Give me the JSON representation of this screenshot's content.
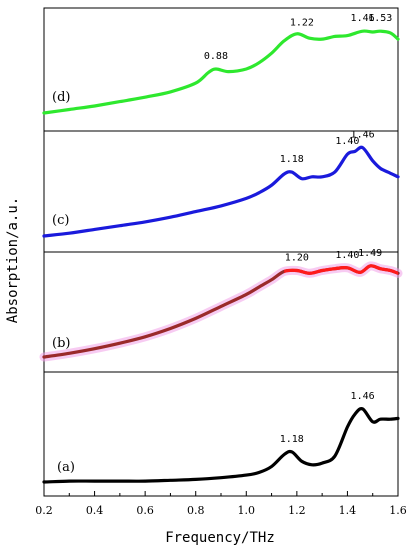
{
  "chart_data": {
    "type": "line",
    "title": "",
    "xlabel": "Frequency/THz",
    "ylabel": "Absorption/a.u.",
    "xlim": [
      0.2,
      1.6
    ],
    "x_ticks": [
      "0.2",
      "0.4",
      "0.6",
      "0.8",
      "1.0",
      "1.2",
      "1.4",
      "1.6"
    ],
    "grid": false,
    "panels": [
      {
        "label": "(d)",
        "color": "#2ee82e",
        "x": [
          0.2,
          0.3,
          0.4,
          0.5,
          0.6,
          0.7,
          0.8,
          0.85,
          0.88,
          0.93,
          1.0,
          1.05,
          1.1,
          1.15,
          1.2,
          1.25,
          1.3,
          1.35,
          1.4,
          1.46,
          1.5,
          1.53,
          1.57,
          1.6
        ],
        "y": [
          0.0,
          0.04,
          0.08,
          0.13,
          0.18,
          0.24,
          0.34,
          0.46,
          0.5,
          0.47,
          0.5,
          0.57,
          0.68,
          0.82,
          0.9,
          0.85,
          0.84,
          0.87,
          0.88,
          0.93,
          0.92,
          0.93,
          0.91,
          0.84
        ],
        "peaks": [
          {
            "x": 0.88,
            "text": "0.88"
          },
          {
            "x": 1.22,
            "text": "1.22"
          },
          {
            "x": 1.46,
            "text": "1.46"
          },
          {
            "x": 1.53,
            "text": "1.53"
          }
        ]
      },
      {
        "label": "(c)",
        "color": "#1a1adc",
        "x": [
          0.2,
          0.3,
          0.4,
          0.5,
          0.6,
          0.7,
          0.8,
          0.9,
          1.0,
          1.05,
          1.1,
          1.15,
          1.18,
          1.22,
          1.26,
          1.3,
          1.35,
          1.4,
          1.43,
          1.46,
          1.5,
          1.53,
          1.56,
          1.6
        ],
        "y": [
          0.0,
          0.03,
          0.07,
          0.11,
          0.15,
          0.2,
          0.26,
          0.32,
          0.4,
          0.46,
          0.54,
          0.66,
          0.68,
          0.61,
          0.63,
          0.63,
          0.68,
          0.87,
          0.9,
          0.94,
          0.8,
          0.72,
          0.68,
          0.63
        ],
        "peaks": [
          {
            "x": 1.18,
            "text": "1.18"
          },
          {
            "x": 1.4,
            "text": "1.40"
          },
          {
            "x": 1.46,
            "text": "1.46"
          }
        ]
      },
      {
        "label": "(b)",
        "color": "#9a2a2a",
        "peak_color": "#ff1a1a",
        "x": [
          0.2,
          0.3,
          0.4,
          0.5,
          0.6,
          0.7,
          0.8,
          0.9,
          1.0,
          1.05,
          1.1,
          1.15,
          1.2,
          1.25,
          1.3,
          1.35,
          1.4,
          1.45,
          1.49,
          1.53,
          1.57,
          1.6
        ],
        "y": [
          0.0,
          0.04,
          0.09,
          0.15,
          0.22,
          0.31,
          0.42,
          0.55,
          0.68,
          0.76,
          0.84,
          0.93,
          0.94,
          0.91,
          0.94,
          0.96,
          0.97,
          0.92,
          0.99,
          0.96,
          0.94,
          0.91
        ],
        "peaks": [
          {
            "x": 1.2,
            "text": "1.20"
          },
          {
            "x": 1.4,
            "text": "1.40"
          },
          {
            "x": 1.49,
            "text": "1.49"
          }
        ]
      },
      {
        "label": "(a)",
        "color": "#000000",
        "x": [
          0.2,
          0.3,
          0.4,
          0.5,
          0.6,
          0.7,
          0.8,
          0.9,
          1.0,
          1.05,
          1.1,
          1.15,
          1.18,
          1.22,
          1.26,
          1.3,
          1.35,
          1.4,
          1.43,
          1.46,
          1.5,
          1.53,
          1.57,
          1.6
        ],
        "y": [
          0.0,
          0.01,
          0.01,
          0.01,
          0.01,
          0.02,
          0.03,
          0.05,
          0.08,
          0.11,
          0.18,
          0.32,
          0.35,
          0.24,
          0.2,
          0.22,
          0.3,
          0.64,
          0.79,
          0.85,
          0.7,
          0.73,
          0.73,
          0.74
        ],
        "peaks": [
          {
            "x": 1.18,
            "text": "1.18"
          },
          {
            "x": 1.46,
            "text": "1.46"
          }
        ]
      }
    ]
  }
}
